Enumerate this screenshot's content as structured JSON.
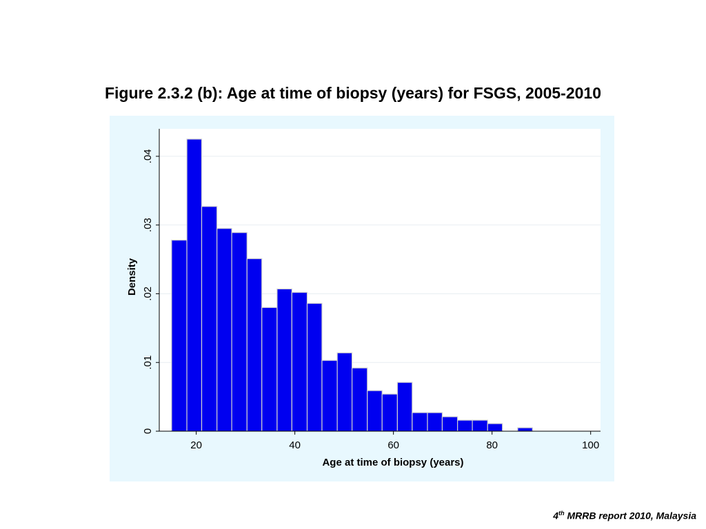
{
  "page": {
    "title": "Figure 2.3.2 (b): Age at time of biopsy (years) for FSGS, 2005-2010",
    "footer": {
      "number": "4",
      "superscript": "th",
      "text": " MRRB report 2010, Malaysia"
    }
  },
  "colors": {
    "panel_background": "#e8f8fe",
    "plot_background": "#ffffff",
    "bar_fill": "#0000f0",
    "bar_stroke": "#d0d0d0",
    "grid": "#e8eef2"
  },
  "chart_data": {
    "type": "bar",
    "xlabel": "Age at time of biopsy (years)",
    "ylabel": "Density",
    "xlim": [
      12.5,
      102
    ],
    "ylim": [
      0,
      0.044
    ],
    "x_ticks": [
      {
        "value": 20,
        "label": "20"
      },
      {
        "value": 40,
        "label": "40"
      },
      {
        "value": 60,
        "label": "60"
      },
      {
        "value": 80,
        "label": "80"
      },
      {
        "value": 100,
        "label": "100"
      }
    ],
    "y_ticks": [
      {
        "value": 0,
        "label": "0"
      },
      {
        "value": 0.01,
        "label": ".01"
      },
      {
        "value": 0.02,
        "label": ".02"
      },
      {
        "value": 0.03,
        "label": ".03"
      },
      {
        "value": 0.04,
        "label": ".04"
      }
    ],
    "grid": true,
    "bins": [
      {
        "start": 15.0,
        "end": 18.1,
        "density": 0.0278
      },
      {
        "start": 18.1,
        "end": 21.1,
        "density": 0.0425
      },
      {
        "start": 21.1,
        "end": 24.2,
        "density": 0.0327
      },
      {
        "start": 24.2,
        "end": 27.2,
        "density": 0.0295
      },
      {
        "start": 27.2,
        "end": 30.3,
        "density": 0.0289
      },
      {
        "start": 30.3,
        "end": 33.3,
        "density": 0.0251
      },
      {
        "start": 33.3,
        "end": 36.4,
        "density": 0.018
      },
      {
        "start": 36.4,
        "end": 39.4,
        "density": 0.0207
      },
      {
        "start": 39.4,
        "end": 42.5,
        "density": 0.0202
      },
      {
        "start": 42.5,
        "end": 45.5,
        "density": 0.0186
      },
      {
        "start": 45.5,
        "end": 48.6,
        "density": 0.0103
      },
      {
        "start": 48.6,
        "end": 51.6,
        "density": 0.0114
      },
      {
        "start": 51.6,
        "end": 54.7,
        "density": 0.0092
      },
      {
        "start": 54.7,
        "end": 57.7,
        "density": 0.0059
      },
      {
        "start": 57.7,
        "end": 60.8,
        "density": 0.0054
      },
      {
        "start": 60.8,
        "end": 63.8,
        "density": 0.0071
      },
      {
        "start": 63.8,
        "end": 66.9,
        "density": 0.0027
      },
      {
        "start": 66.9,
        "end": 69.9,
        "density": 0.0027
      },
      {
        "start": 69.9,
        "end": 73.0,
        "density": 0.0021
      },
      {
        "start": 73.0,
        "end": 76.0,
        "density": 0.0016
      },
      {
        "start": 76.0,
        "end": 79.1,
        "density": 0.0016
      },
      {
        "start": 79.1,
        "end": 82.1,
        "density": 0.0011
      },
      {
        "start": 85.2,
        "end": 88.2,
        "density": 0.0005
      }
    ]
  }
}
